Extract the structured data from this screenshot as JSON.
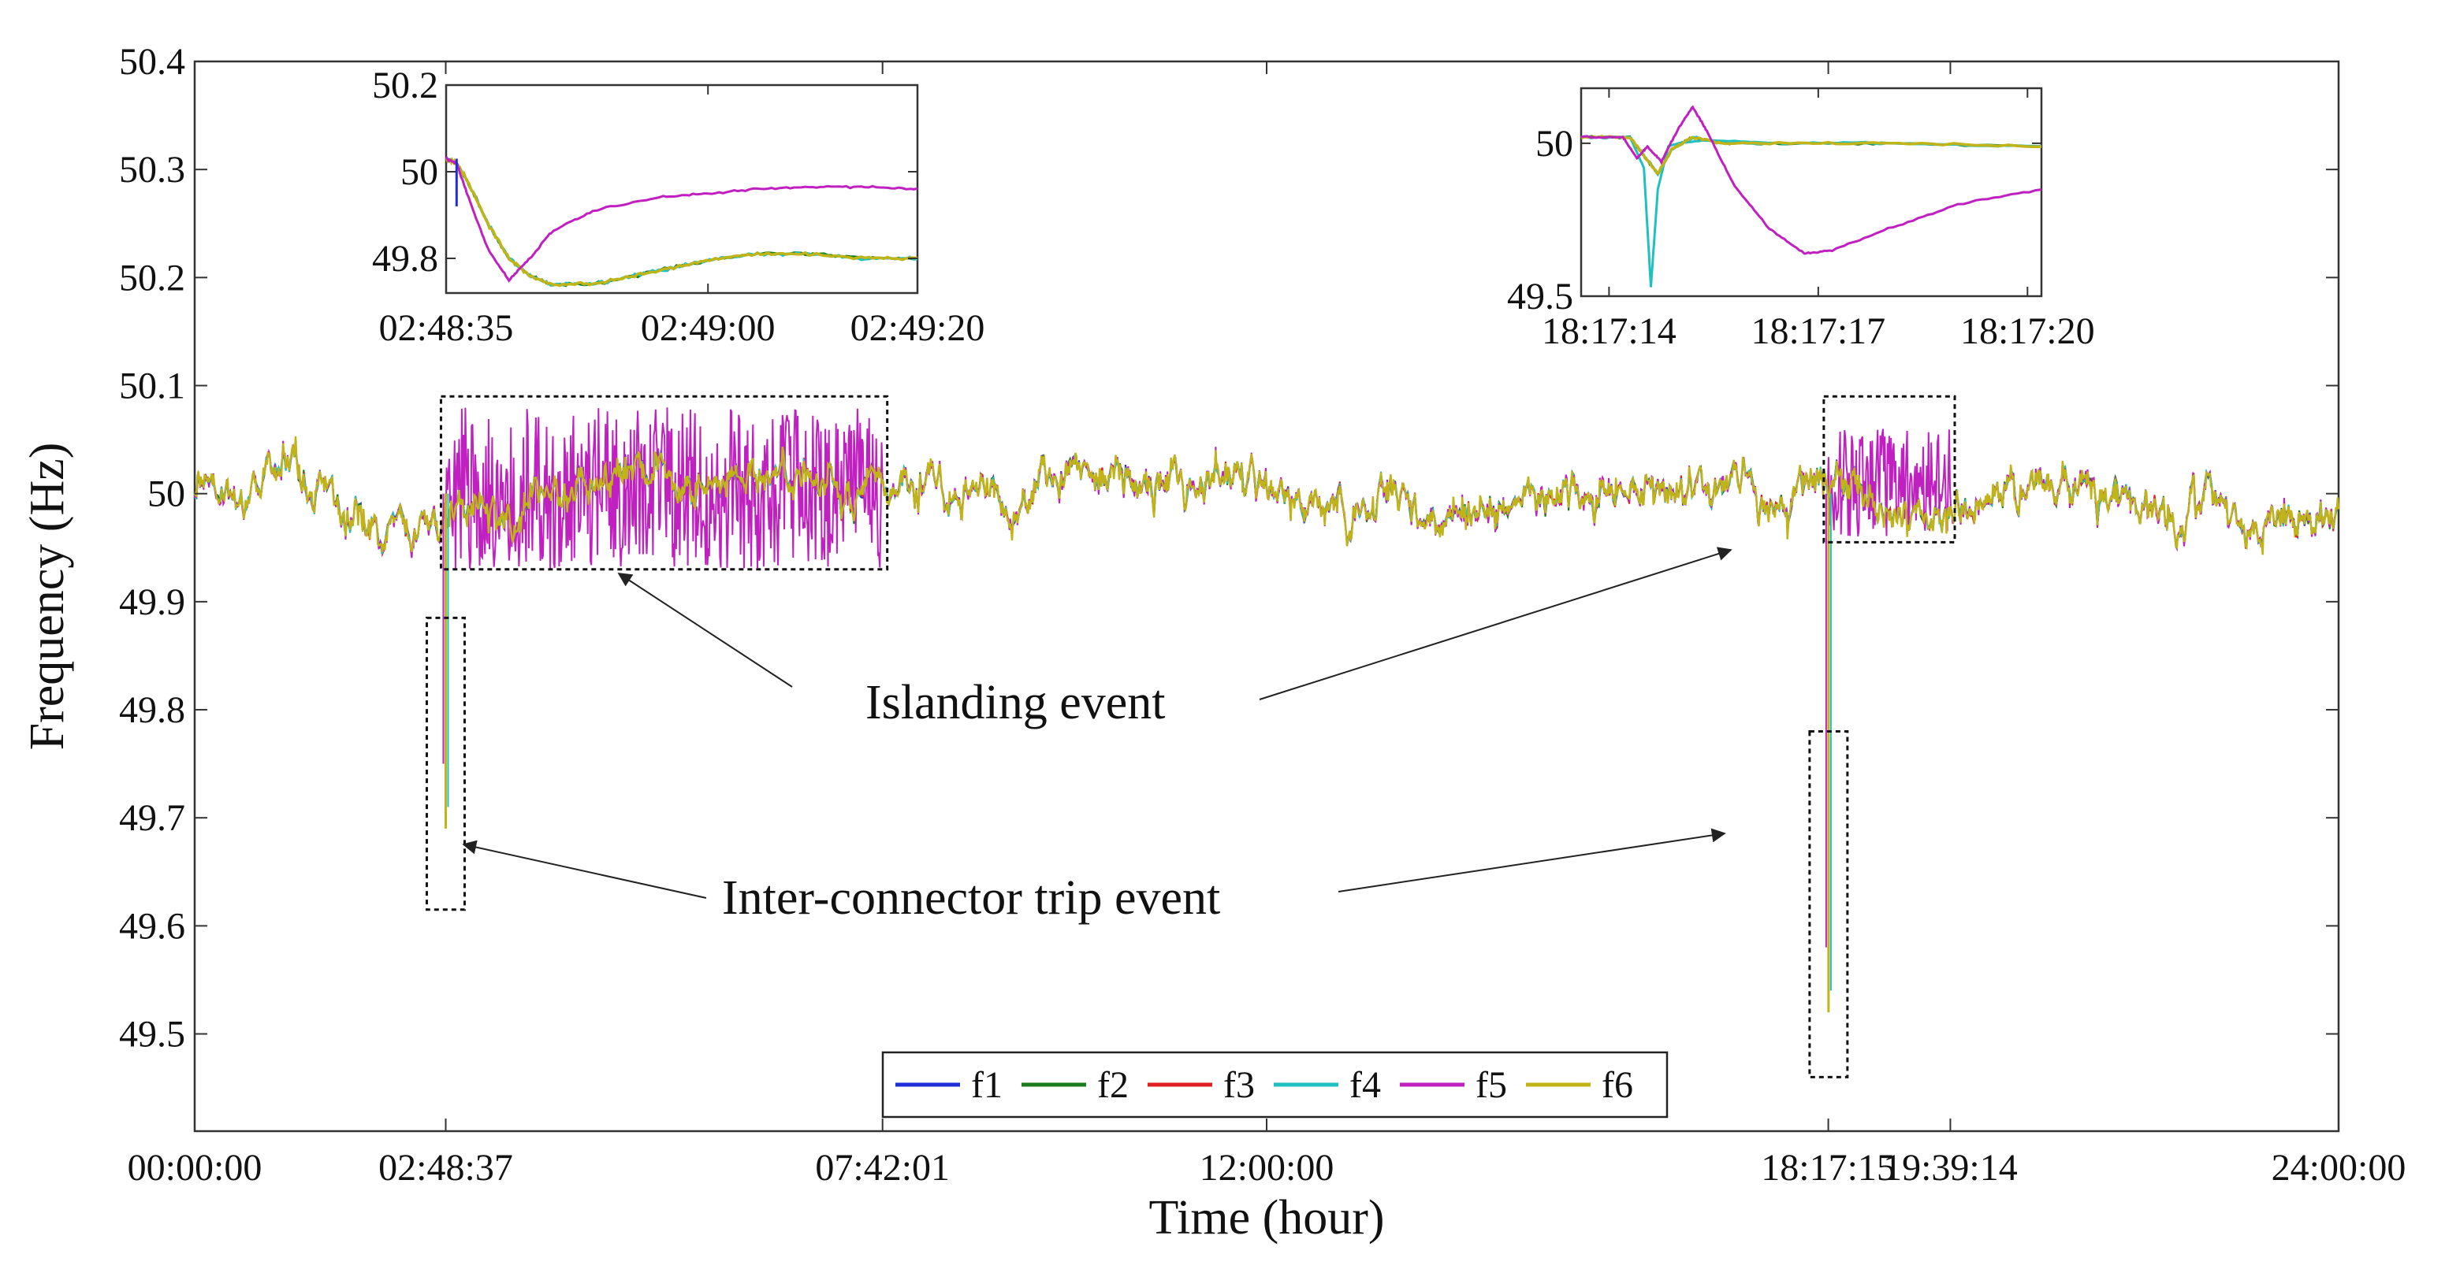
{
  "chart_data": {
    "type": "line",
    "title": "",
    "xlabel": "Time (hour)",
    "ylabel": "Frequency (Hz)",
    "x_ticks": [
      "00:00:00",
      "02:48:37",
      "07:42:01",
      "12:00:00",
      "18:17:15",
      "19:39:14",
      "24:00:00"
    ],
    "x_tick_hours": [
      0,
      2.8103,
      7.7003,
      12.0,
      18.2875,
      19.6539,
      24.0
    ],
    "xlim": [
      0,
      24
    ],
    "y_ticks": [
      "49.5",
      "49.6",
      "49.7",
      "49.8",
      "49.9",
      "50",
      "50.1",
      "50.2",
      "50.3",
      "50.4"
    ],
    "ylim": [
      49.41,
      50.4
    ],
    "grid": false,
    "legend": {
      "position": "bottom-center",
      "entries": [
        {
          "name": "f1",
          "color": "#1f2ed6"
        },
        {
          "name": "f2",
          "color": "#1a7d1a"
        },
        {
          "name": "f3",
          "color": "#e02020"
        },
        {
          "name": "f4",
          "color": "#20c0c0"
        },
        {
          "name": "f5",
          "color": "#c020c0"
        },
        {
          "name": "f6",
          "color": "#c0b418"
        }
      ]
    },
    "series_summary": {
      "nominal_hz": 50.0,
      "typical_band_hz": [
        49.85,
        50.15
      ],
      "note": "f1-f4 and f6 overlap almost completely; f5 diverges during islanding periods"
    },
    "islanding_periods": [
      {
        "start_hour": 2.81,
        "end_hour": 7.7,
        "y_range": [
          49.93,
          50.09
        ],
        "f5_band": [
          49.93,
          50.08
        ]
      },
      {
        "start_hour": 18.29,
        "end_hour": 19.65,
        "y_range": [
          49.955,
          50.09
        ],
        "f5_band": [
          49.96,
          50.06
        ]
      }
    ],
    "inter_connector_trips": [
      {
        "time": "02:48:37",
        "hour": 2.81,
        "min_hz": 49.69,
        "box_y_range": [
          49.615,
          49.885
        ]
      },
      {
        "time": "18:17:15",
        "hour": 18.29,
        "min_hz": 49.52,
        "box_y_range": [
          49.46,
          49.78
        ]
      }
    ],
    "annotations": [
      {
        "text": "Islanding event"
      },
      {
        "text": "Inter-connector trip event"
      }
    ],
    "insets": [
      {
        "name": "inset-1",
        "x_ticks": [
          "02:48:35",
          "02:49:00",
          "02:49:20"
        ],
        "x_tick_seconds": [
          0,
          25,
          45
        ],
        "xlim": [
          0,
          45
        ],
        "y_ticks": [
          "49.8",
          "50",
          "50.2"
        ],
        "ylim": [
          49.72,
          50.2
        ],
        "f5": {
          "x": [
            0,
            1,
            2,
            4,
            6,
            8,
            10,
            14,
            20,
            25,
            30,
            35,
            40,
            45
          ],
          "y": [
            50.03,
            50.02,
            49.95,
            49.82,
            49.75,
            49.8,
            49.86,
            49.91,
            49.94,
            49.95,
            49.96,
            49.965,
            49.965,
            49.96
          ]
        },
        "others": {
          "x": [
            0,
            1,
            2,
            4,
            6,
            8,
            10,
            14,
            18,
            22,
            26,
            30,
            35,
            40,
            45
          ],
          "y": [
            50.03,
            50.02,
            49.98,
            49.88,
            49.8,
            49.76,
            49.74,
            49.74,
            49.76,
            49.78,
            49.8,
            49.81,
            49.81,
            49.8,
            49.8
          ]
        },
        "f1_spike": {
          "x": [
            1.0,
            1.0
          ],
          "y": [
            50.03,
            49.92
          ]
        }
      },
      {
        "name": "inset-2",
        "x_ticks": [
          "18:17:14",
          "18:17:17",
          "18:17:20"
        ],
        "x_tick_seconds": [
          0,
          3,
          6
        ],
        "xlim": [
          -0.4,
          6.2
        ],
        "y_ticks": [
          "49.5",
          "50"
        ],
        "ylim": [
          49.5,
          50.18
        ],
        "f5": {
          "x": [
            -0.4,
            0.2,
            0.4,
            0.55,
            0.75,
            1.0,
            1.2,
            1.4,
            1.8,
            2.3,
            2.8,
            3.2,
            4.0,
            5.0,
            6.2
          ],
          "y": [
            50.02,
            50.02,
            49.95,
            49.99,
            49.94,
            50.05,
            50.12,
            50.04,
            49.86,
            49.72,
            49.64,
            49.65,
            49.72,
            49.8,
            49.85
          ]
        },
        "f4": {
          "x": [
            -0.4,
            0.3,
            0.5,
            0.6,
            0.7,
            0.85,
            1.0,
            1.4,
            2.5,
            4.0,
            6.2
          ],
          "y": [
            50.02,
            50.02,
            49.92,
            49.53,
            49.85,
            49.99,
            50.0,
            50.01,
            50.0,
            50.0,
            49.99
          ]
        },
        "others": {
          "x": [
            -0.4,
            0.3,
            0.5,
            0.7,
            0.9,
            1.2,
            1.6,
            2.5,
            4.0,
            6.2
          ],
          "y": [
            50.02,
            50.02,
            49.96,
            49.9,
            49.98,
            50.02,
            50.0,
            50.0,
            50.0,
            49.99
          ]
        }
      }
    ]
  }
}
